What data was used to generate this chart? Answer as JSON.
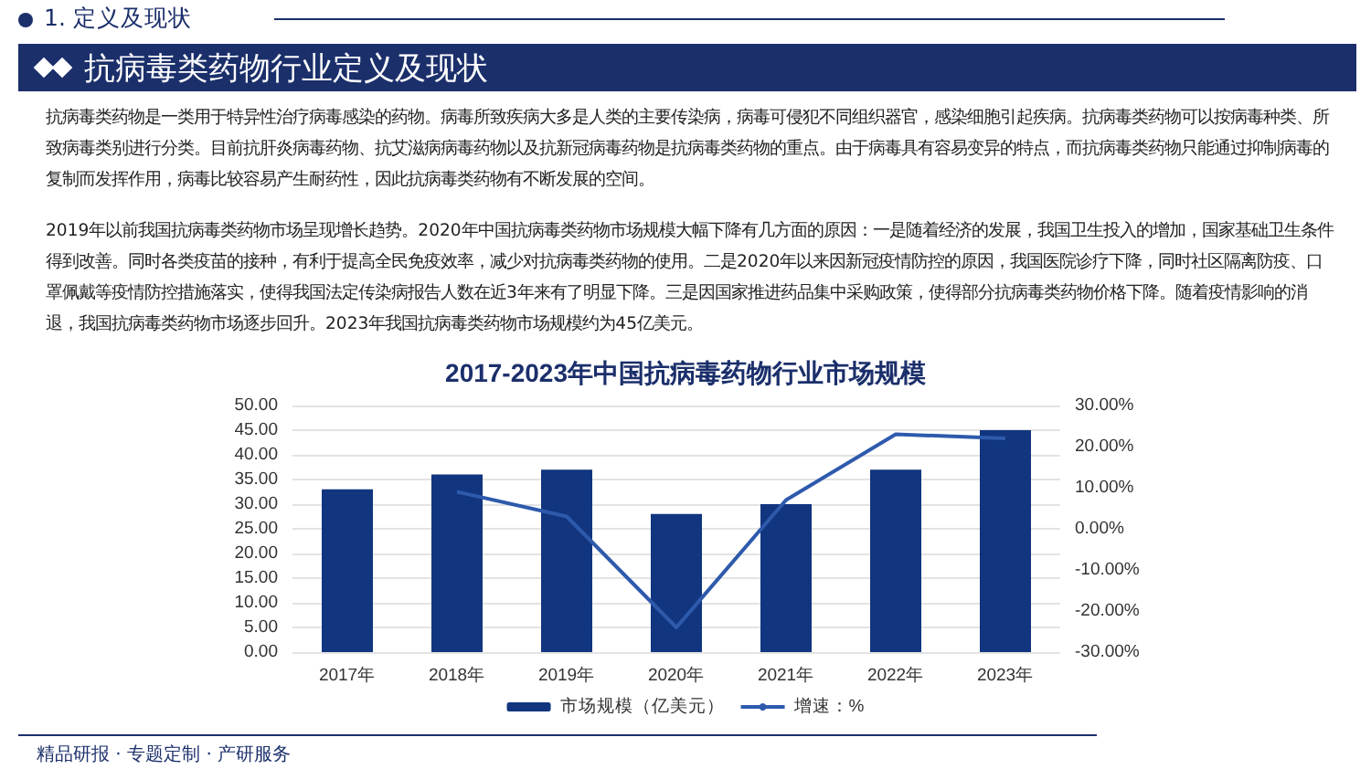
{
  "chart_data": {
    "type": "bar",
    "title": "2017-2023年中国抗病毒药物行业市场规模",
    "annotations": [
      "1. 定义及现状",
      "抗病毒类药物行业定义及现状",
      "抗病毒类药物是一类用于特异性治疗病毒感染的药物。病毒所致疾病大多是人类的主要传染病，病毒可侵犯不同组织器官，感染细胞引起疾病。抗病毒类药物可以按病毒种类、所致病毒类别进行分类。目前抗肝炎病毒药物、抗艾滋病病毒药物以及抗新冠病毒药物是抗病毒类药物的重点。由于病毒具有容易变异的特点，而抗病毒类药物只能通过抑制病毒的复制而发挥作用，病毒比较容易产生耐药性，因此抗病毒类药物有不断发展的空间。",
      "2019年以前我国抗病毒类药物市场呈现增长趋势。2020年中国抗病毒类药物市场规模大幅下降有几方面的原因：一是随着经济的发展，我国卫生投入的增加，国家基础卫生条件得到改善。同时各类疫苗的接种，有利于提高全民免疫效率，减少对抗病毒类药物的使用。二是2020年以来因新冠疫情防控的原因，我国医院诊疗下降，同时社区隔离防疫、口罩佩戴等疫情防控措施落实，使得我国法定传染病报告人数在近3年来有了明显下降。三是因国家推进药品集中采购政策，使得部分抗病毒类药物价格下降。随着疫情影响的消退，我国抗病毒类药物市场逐步回升。2023年我国抗病毒类药物市场规模约为45亿美元。",
      "精品研报 · 专题定制 · 产研服务"
    ],
    "categories": [
      "2017年",
      "2018年",
      "2019年",
      "2020年",
      "2021年",
      "2022年",
      "2023年"
    ],
    "series": [
      {
        "name": "市场规模（亿美元）",
        "color": "#11357f",
        "values": [
          33,
          36,
          37,
          28,
          30,
          37,
          45
        ]
      },
      {
        "name": "增速：%",
        "type": "line",
        "axis": "y2",
        "color": "#2e5aac",
        "values": [
          null,
          9,
          3,
          -24,
          7,
          23,
          22
        ]
      }
    ],
    "ylim": [
      0,
      50
    ],
    "yticks": [
      {
        "value": 0,
        "label": "0.00"
      },
      {
        "value": 5,
        "label": "5.00"
      },
      {
        "value": 10,
        "label": "10.00"
      },
      {
        "value": 15,
        "label": "15.00"
      },
      {
        "value": 20,
        "label": "20.00"
      },
      {
        "value": 25,
        "label": "25.00"
      },
      {
        "value": 30,
        "label": "30.00"
      },
      {
        "value": 35,
        "label": "35.00"
      },
      {
        "value": 40,
        "label": "40.00"
      },
      {
        "value": 45,
        "label": "45.00"
      },
      {
        "value": 50,
        "label": "50.00"
      }
    ],
    "y2lim": [
      -30,
      30
    ],
    "y2ticks": [
      {
        "value": -30,
        "label": "-30.00%"
      },
      {
        "value": -20,
        "label": "-20.00%"
      },
      {
        "value": -10,
        "label": "-10.00%"
      },
      {
        "value": 0,
        "label": "0.00%"
      },
      {
        "value": 10,
        "label": "10.00%"
      },
      {
        "value": 20,
        "label": "20.00%"
      },
      {
        "value": 30,
        "label": "30.00%"
      }
    ],
    "grid": "y",
    "legend": "bottom",
    "marker": "none",
    "line_style": "solid"
  }
}
